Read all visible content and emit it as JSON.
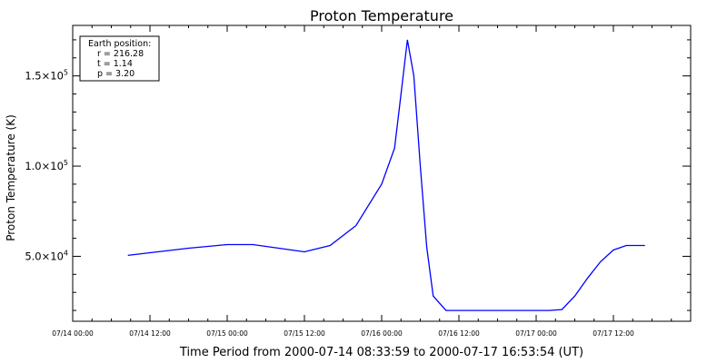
{
  "chart_data": {
    "type": "line",
    "title": "Proton Temperature",
    "xlabel": "Time Period from 2000-07-14 08:33:59 to 2000-07-17 16:53:54 (UT)",
    "ylabel": "Proton Temperature (K)",
    "line_color": "#0000ff",
    "grid": false,
    "xlim": [
      "2000-07-14 00:00",
      "2000-07-18 00:00"
    ],
    "ylim": [
      14000,
      178000
    ],
    "x_ticks": [
      {
        "value": "2000-07-14 00:00",
        "label": "07/14 00:00"
      },
      {
        "value": "2000-07-14 12:00",
        "label": "07/14 12:00"
      },
      {
        "value": "2000-07-15 00:00",
        "label": "07/15 00:00"
      },
      {
        "value": "2000-07-15 12:00",
        "label": "07/15 12:00"
      },
      {
        "value": "2000-07-16 00:00",
        "label": "07/16 00:00"
      },
      {
        "value": "2000-07-16 12:00",
        "label": "07/16 12:00"
      },
      {
        "value": "2000-07-17 00:00",
        "label": "07/17 00:00"
      },
      {
        "value": "2000-07-17 12:00",
        "label": "07/17 12:00"
      }
    ],
    "y_ticks": [
      {
        "value": 50000,
        "mantissa": "5.0",
        "exponent": "4"
      },
      {
        "value": 100000,
        "mantissa": "1.0",
        "exponent": "5"
      },
      {
        "value": 150000,
        "mantissa": "1.5",
        "exponent": "5"
      }
    ],
    "legend_box": {
      "position": "top-left",
      "lines": [
        "Earth position:",
        "r = 216.28",
        "t = 1.14",
        "p = 3.20"
      ]
    },
    "series": [
      {
        "x": [
          "2000-07-14 08:34",
          "2000-07-14 12:00",
          "2000-07-14 18:00",
          "2000-07-15 00:00",
          "2000-07-15 04:00",
          "2000-07-15 08:00",
          "2000-07-15 12:00",
          "2000-07-15 16:00",
          "2000-07-15 20:00",
          "2000-07-16 00:00",
          "2000-07-16 02:00",
          "2000-07-16 03:00",
          "2000-07-16 04:00",
          "2000-07-16 05:00",
          "2000-07-16 06:00",
          "2000-07-16 07:00",
          "2000-07-16 08:00",
          "2000-07-16 10:00",
          "2000-07-16 12:00",
          "2000-07-16 18:00",
          "2000-07-17 00:00",
          "2000-07-17 02:00",
          "2000-07-17 04:00",
          "2000-07-17 06:00",
          "2000-07-17 08:00",
          "2000-07-17 10:00",
          "2000-07-17 12:00",
          "2000-07-17 14:00",
          "2000-07-17 16:54"
        ],
        "y": [
          50500,
          52000,
          54500,
          56500,
          56500,
          54500,
          52500,
          56000,
          67000,
          90000,
          110000,
          140000,
          170000,
          150000,
          100000,
          55000,
          28000,
          20000,
          20000,
          20000,
          20000,
          20000,
          20500,
          28000,
          38000,
          47000,
          53500,
          56000,
          56000
        ]
      }
    ]
  }
}
